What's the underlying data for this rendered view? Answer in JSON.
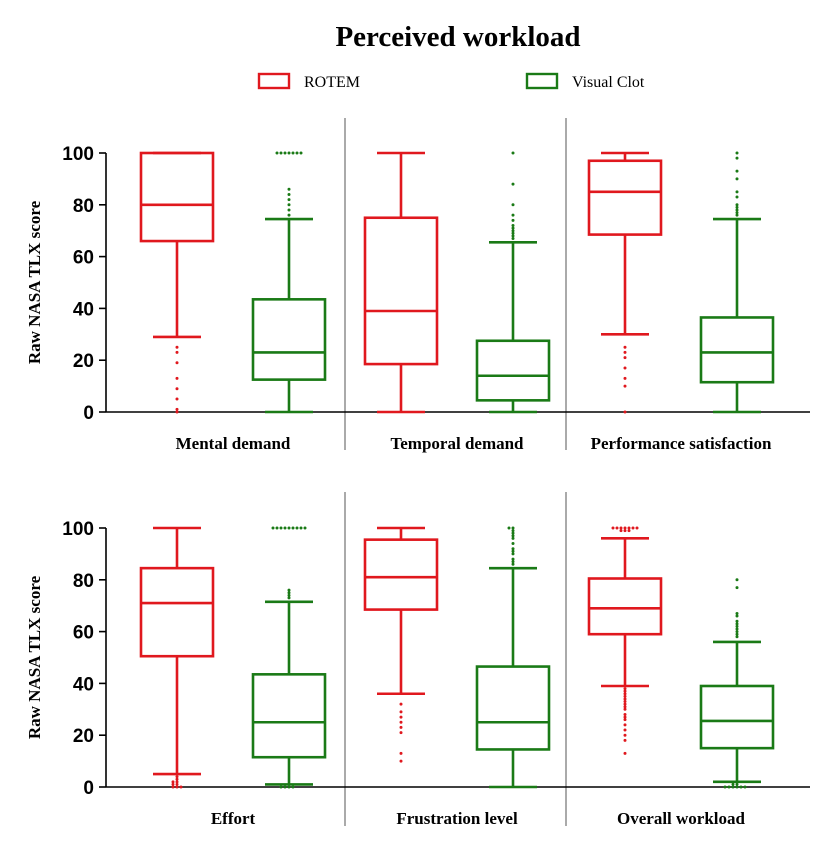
{
  "title": "Perceived workload",
  "colors": {
    "ROTEM": "#e0181e",
    "Visual Clot": "#1a7a16",
    "axis": "#000000",
    "divider": "#555555"
  },
  "legend": [
    {
      "name": "ROTEM",
      "color": "#e0181e"
    },
    {
      "name": "Visual Clot",
      "color": "#1a7a16"
    }
  ],
  "chart_data": [
    {
      "type": "box",
      "panel": "top",
      "ylabel": "Raw NASA TLX score",
      "ylim": [
        0,
        100
      ],
      "yticks": [
        "0",
        "20",
        "40",
        "60",
        "80",
        "100"
      ],
      "categories": [
        "Mental demand",
        "Temporal demand",
        "Performance satisfaction"
      ],
      "series": [
        {
          "name": "ROTEM",
          "boxes": [
            {
              "min": 29,
              "q1": 66,
              "median": 80,
              "q3": 100,
              "max": 100,
              "outliers": [
                0,
                1,
                5,
                9,
                13,
                19,
                23,
                25
              ]
            },
            {
              "min": 0,
              "q1": 18.5,
              "median": 39,
              "q3": 75,
              "max": 100,
              "outliers": []
            },
            {
              "min": 30,
              "q1": 68.5,
              "median": 85,
              "q3": 97,
              "max": 100,
              "outliers": [
                0,
                10,
                13,
                17,
                21,
                23,
                25
              ]
            }
          ]
        },
        {
          "name": "Visual Clot",
          "boxes": [
            {
              "min": 0,
              "q1": 12.5,
              "median": 23,
              "q3": 43.5,
              "max": 74.5,
              "outliers": [
                76,
                78,
                80,
                82,
                84,
                86,
                100,
                100,
                100,
                100,
                100,
                100,
                100
              ]
            },
            {
              "min": 0,
              "q1": 4.5,
              "median": 14,
              "q3": 27.5,
              "max": 65.5,
              "outliers": [
                67,
                68,
                69,
                70,
                71,
                72,
                74,
                76,
                80,
                88,
                100
              ]
            },
            {
              "min": 0,
              "q1": 11.5,
              "median": 23,
              "q3": 36.5,
              "max": 74.5,
              "outliers": [
                76,
                77,
                78,
                79,
                80,
                83,
                85,
                90,
                93,
                98,
                100
              ]
            }
          ]
        }
      ]
    },
    {
      "type": "box",
      "panel": "bottom",
      "ylabel": "Raw NASA TLX score",
      "ylim": [
        0,
        100
      ],
      "yticks": [
        "0",
        "20",
        "40",
        "60",
        "80",
        "100"
      ],
      "categories": [
        "Effort",
        "Frustration level",
        "Overall workload"
      ],
      "series": [
        {
          "name": "ROTEM",
          "boxes": [
            {
              "min": 5,
              "q1": 50.5,
              "median": 71,
              "q3": 84.5,
              "max": 100,
              "outliers": [
                0,
                0,
                0,
                1,
                1,
                2,
                2,
                3,
                4
              ]
            },
            {
              "min": 36,
              "q1": 68.5,
              "median": 81,
              "q3": 95.5,
              "max": 100,
              "outliers": [
                10,
                13,
                21,
                23,
                25,
                27,
                29,
                32
              ]
            },
            {
              "min": 39,
              "q1": 59,
              "median": 69,
              "q3": 80.5,
              "max": 96,
              "outliers": [
                13,
                18,
                20,
                22,
                24,
                26,
                27,
                28,
                30,
                31,
                32,
                33,
                34,
                35,
                36,
                37,
                38,
                99,
                99,
                99,
                100,
                100,
                100,
                100,
                100,
                100,
                100
              ]
            }
          ]
        },
        {
          "name": "Visual Clot",
          "boxes": [
            {
              "min": 1,
              "q1": 11.5,
              "median": 25,
              "q3": 43.5,
              "max": 71.5,
              "outliers": [
                0,
                0,
                0,
                0,
                73,
                74,
                75,
                76,
                100,
                100,
                100,
                100,
                100,
                100,
                100,
                100,
                100
              ]
            },
            {
              "min": 0,
              "q1": 14.5,
              "median": 25,
              "q3": 46.5,
              "max": 84.5,
              "outliers": [
                86,
                87,
                88,
                90,
                91,
                92,
                94,
                96,
                97,
                98,
                99,
                100,
                100
              ]
            },
            {
              "min": 2,
              "q1": 15,
              "median": 25.5,
              "q3": 39,
              "max": 56,
              "outliers": [
                0,
                0,
                0,
                0,
                0,
                0,
                1,
                1,
                58,
                59,
                60,
                61,
                62,
                63,
                64,
                66,
                67,
                77,
                80
              ]
            }
          ]
        }
      ]
    }
  ]
}
